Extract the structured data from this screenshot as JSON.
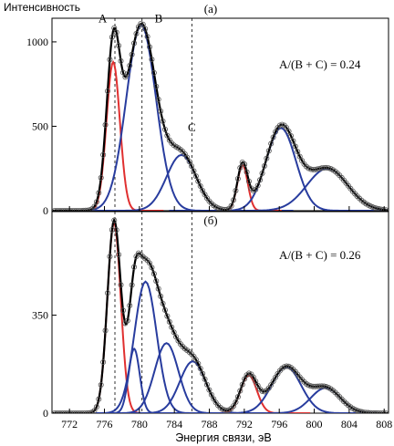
{
  "chart_data": {
    "type": "line",
    "ylabel": "Интенсивность",
    "xlabel": "Энергия связи, эВ",
    "xlim": [
      770,
      808.5
    ],
    "x_ticks": [
      772,
      776,
      780,
      784,
      788,
      792,
      796,
      800,
      804,
      808
    ],
    "panels": [
      {
        "label": "(а)",
        "ratio_text": "A/(B + C) = 0.24",
        "ylim": [
          0,
          1140
        ],
        "y_ticks": [
          0,
          500,
          1000
        ],
        "peak_letters": [
          {
            "text": "A",
            "x": 775.8,
            "y": 1115
          },
          {
            "text": "B",
            "x": 782.2,
            "y": 1115
          },
          {
            "text": "C",
            "x": 786.0,
            "y": 470
          }
        ],
        "guide_lines_x": [
          777.2,
          780.3,
          786.0
        ],
        "components": [
          {
            "color": "red",
            "center": 777.0,
            "height": 880,
            "fwhm": 1.8
          },
          {
            "color": "blue",
            "center": 780.2,
            "height": 1100,
            "fwhm": 4.0
          },
          {
            "color": "blue",
            "center": 784.8,
            "height": 330,
            "fwhm": 4.0
          },
          {
            "color": "red",
            "center": 791.8,
            "height": 270,
            "fwhm": 1.4
          },
          {
            "color": "blue",
            "center": 796.2,
            "height": 490,
            "fwhm": 4.0
          },
          {
            "color": "blue",
            "center": 801.5,
            "height": 250,
            "fwhm": 5.5
          }
        ]
      },
      {
        "label": "(б)",
        "ratio_text": "A/(B + C) = 0.26",
        "ylim": [
          0,
          720
        ],
        "y_ticks": [
          0,
          350
        ],
        "peak_letters": [],
        "guide_lines_x": [
          777.2,
          780.3,
          786.0
        ],
        "components": [
          {
            "color": "red",
            "center": 777.1,
            "height": 680,
            "fwhm": 1.8
          },
          {
            "color": "blue",
            "center": 779.4,
            "height": 230,
            "fwhm": 1.5
          },
          {
            "color": "blue",
            "center": 780.7,
            "height": 470,
            "fwhm": 3.0
          },
          {
            "color": "blue",
            "center": 783.1,
            "height": 250,
            "fwhm": 3.2
          },
          {
            "color": "blue",
            "center": 786.1,
            "height": 185,
            "fwhm": 3.5
          },
          {
            "color": "red",
            "center": 792.5,
            "height": 135,
            "fwhm": 2.2
          },
          {
            "color": "blue",
            "center": 796.8,
            "height": 165,
            "fwhm": 4.0
          },
          {
            "color": "blue",
            "center": 801.3,
            "height": 90,
            "fwhm": 4.0
          }
        ]
      }
    ]
  }
}
